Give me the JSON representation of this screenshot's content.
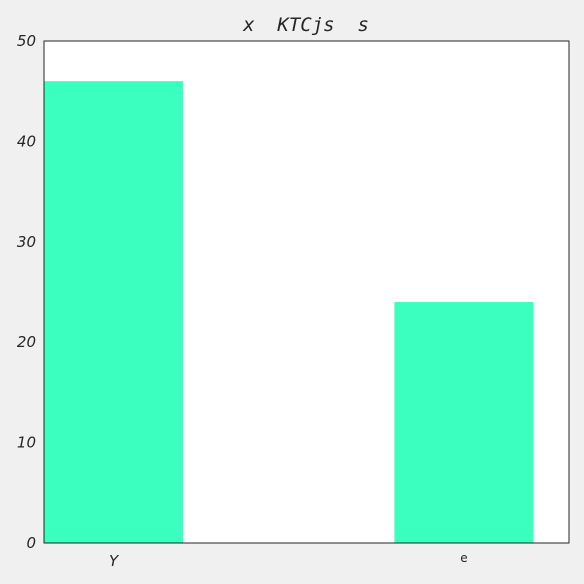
{
  "chart_data": {
    "type": "bar",
    "title": "x  KTCjs  s",
    "xlabel": "",
    "ylabel": "",
    "categories": [
      "Y",
      "e"
    ],
    "series": [
      {
        "values": [
          46,
          24
        ]
      }
    ],
    "ylim": [
      0,
      50
    ],
    "yticks": [
      "0",
      "10",
      "20",
      "30",
      "40",
      "50"
    ],
    "bar_color": "#3bffbf",
    "grid": false,
    "legend": "none"
  }
}
